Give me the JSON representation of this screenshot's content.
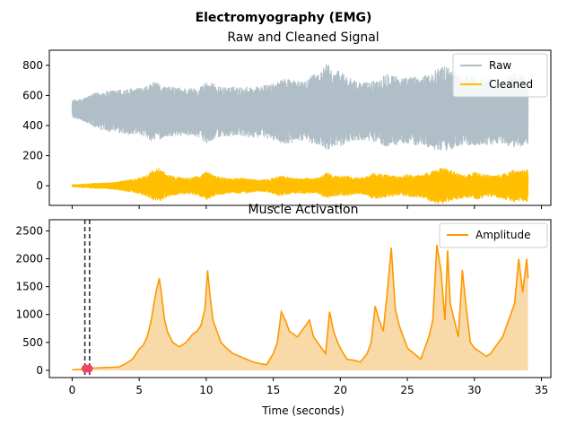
{
  "figure": {
    "suptitle": "Electromyography (EMG)"
  },
  "chart_data": [
    {
      "type": "line",
      "title": "Raw and Cleaned Signal",
      "xlabel": "",
      "ylabel": "",
      "xlim": [
        -1.7,
        35.7
      ],
      "ylim": [
        -130,
        900
      ],
      "xticks": [
        0,
        5,
        10,
        15,
        20,
        25,
        30,
        35
      ],
      "yticks": [
        0,
        200,
        400,
        600,
        800
      ],
      "ytick_labels": [
        "0",
        "200",
        "400",
        "600",
        "800"
      ],
      "show_xtick_labels": false,
      "legend": {
        "placement": "top-right",
        "entries": [
          "Raw",
          "Cleaned"
        ]
      },
      "series": [
        {
          "name": "Raw",
          "color": "#b0bfc7",
          "style": "noisy-band",
          "x": [
            0,
            0.5,
            1,
            1.5,
            2,
            2.5,
            3,
            3.5,
            4,
            4.5,
            5,
            5.5,
            6,
            6.5,
            7,
            7.5,
            8,
            8.5,
            9,
            9.5,
            10,
            10.5,
            11,
            11.5,
            12,
            12.5,
            13,
            13.5,
            14,
            14.5,
            15,
            15.5,
            16,
            16.5,
            17,
            17.5,
            18,
            18.5,
            19,
            19.5,
            20,
            20.5,
            21,
            21.5,
            22,
            22.5,
            23,
            23.5,
            24,
            24.5,
            25,
            25.5,
            26,
            26.5,
            27,
            27.5,
            28,
            28.5,
            29,
            29.5,
            30,
            30.5,
            31,
            31.5,
            32,
            32.5,
            33,
            33.5,
            34
          ],
          "upper": [
            570,
            575,
            590,
            610,
            625,
            630,
            635,
            640,
            645,
            650,
            650,
            660,
            690,
            680,
            660,
            660,
            655,
            650,
            650,
            655,
            700,
            680,
            660,
            655,
            660,
            655,
            660,
            660,
            665,
            670,
            680,
            700,
            720,
            710,
            690,
            700,
            760,
            750,
            820,
            760,
            770,
            730,
            700,
            690,
            690,
            700,
            720,
            760,
            740,
            720,
            720,
            730,
            720,
            740,
            760,
            800,
            790,
            770,
            730,
            730,
            740,
            720,
            720,
            710,
            700,
            740,
            760,
            740,
            720
          ],
          "lower": [
            450,
            440,
            420,
            395,
            370,
            360,
            355,
            345,
            340,
            335,
            330,
            320,
            290,
            305,
            320,
            330,
            330,
            335,
            330,
            320,
            280,
            305,
            320,
            330,
            320,
            330,
            320,
            320,
            320,
            310,
            300,
            285,
            270,
            280,
            300,
            290,
            280,
            270,
            230,
            270,
            260,
            280,
            300,
            300,
            295,
            290,
            280,
            250,
            265,
            280,
            275,
            265,
            270,
            255,
            240,
            215,
            230,
            250,
            270,
            270,
            260,
            265,
            270,
            275,
            280,
            260,
            250,
            255,
            280
          ]
        },
        {
          "name": "Cleaned",
          "color": "#ffbf00",
          "style": "noisy-band",
          "x": [
            0,
            0.5,
            1,
            1.5,
            2,
            2.5,
            3,
            3.5,
            4,
            4.5,
            5,
            5.5,
            6,
            6.5,
            7,
            7.5,
            8,
            8.5,
            9,
            9.5,
            10,
            10.5,
            11,
            11.5,
            12,
            12.5,
            13,
            13.5,
            14,
            14.5,
            15,
            15.5,
            16,
            16.5,
            17,
            17.5,
            18,
            18.5,
            19,
            19.5,
            20,
            20.5,
            21,
            21.5,
            22,
            22.5,
            23,
            23.5,
            24,
            24.5,
            25,
            25.5,
            26,
            26.5,
            27,
            27.5,
            28,
            28.5,
            29,
            29.5,
            30,
            30.5,
            31,
            31.5,
            32,
            32.5,
            33,
            33.5,
            34
          ],
          "upper": [
            10,
            12,
            15,
            18,
            20,
            22,
            25,
            30,
            40,
            45,
            55,
            70,
            110,
            120,
            80,
            65,
            60,
            55,
            60,
            70,
            95,
            80,
            60,
            55,
            50,
            55,
            50,
            45,
            40,
            45,
            55,
            70,
            60,
            55,
            50,
            55,
            50,
            60,
            90,
            70,
            65,
            70,
            60,
            55,
            65,
            90,
            80,
            75,
            70,
            60,
            80,
            70,
            75,
            90,
            105,
            125,
            110,
            100,
            80,
            75,
            95,
            80,
            75,
            70,
            80,
            95,
            110,
            100,
            120
          ],
          "lower": [
            -10,
            -12,
            -15,
            -18,
            -20,
            -22,
            -25,
            -30,
            -40,
            -45,
            -55,
            -70,
            -95,
            -105,
            -80,
            -65,
            -60,
            -55,
            -60,
            -70,
            -95,
            -80,
            -60,
            -55,
            -50,
            -55,
            -50,
            -45,
            -40,
            -45,
            -55,
            -70,
            -60,
            -55,
            -50,
            -55,
            -50,
            -60,
            -90,
            -70,
            -65,
            -70,
            -60,
            -55,
            -65,
            -95,
            -85,
            -75,
            -70,
            -60,
            -80,
            -75,
            -80,
            -95,
            -115,
            -125,
            -110,
            -100,
            -85,
            -80,
            -95,
            -85,
            -75,
            -75,
            -85,
            -100,
            -110,
            -100,
            -110
          ]
        }
      ]
    },
    {
      "type": "area",
      "title": "Muscle Activation",
      "xlabel": "Time (seconds)",
      "ylabel": "",
      "xlim": [
        -1.7,
        35.7
      ],
      "ylim": [
        -130,
        2700
      ],
      "xticks": [
        0,
        5,
        10,
        15,
        20,
        25,
        30,
        35
      ],
      "xtick_labels": [
        "0",
        "5",
        "10",
        "15",
        "20",
        "25",
        "30",
        "35"
      ],
      "yticks": [
        0,
        500,
        1000,
        1500,
        2000,
        2500
      ],
      "ytick_labels": [
        "0",
        "500",
        "1000",
        "1500",
        "2000",
        "2500"
      ],
      "legend": {
        "placement": "top-right",
        "entries": [
          "Amplitude"
        ]
      },
      "series": [
        {
          "name": "Amplitude",
          "color": "#ff9800",
          "fill_color": "#f8d9a8",
          "x": [
            0,
            0.5,
            1,
            1.3,
            1.6,
            2,
            2.5,
            3,
            3.5,
            4,
            4.5,
            5,
            5.3,
            5.6,
            5.9,
            6.1,
            6.3,
            6.5,
            6.7,
            6.9,
            7.1,
            7.5,
            8,
            8.5,
            9,
            9.3,
            9.6,
            9.9,
            10.1,
            10.3,
            10.5,
            10.8,
            11.1,
            11.5,
            12,
            12.5,
            13,
            13.5,
            14,
            14.5,
            15,
            15.3,
            15.6,
            15.9,
            16.2,
            16.5,
            16.8,
            17.1,
            17.4,
            17.7,
            18,
            18.3,
            18.6,
            18.9,
            19.2,
            19.5,
            19.8,
            20.1,
            20.5,
            21,
            21.5,
            22,
            22.3,
            22.6,
            22.9,
            23.2,
            23.5,
            23.8,
            24.1,
            24.4,
            24.7,
            25,
            25.5,
            26,
            26.3,
            26.6,
            26.9,
            27.2,
            27.5,
            27.8,
            28,
            28.2,
            28.5,
            28.8,
            29.1,
            29.4,
            29.7,
            30,
            30.3,
            30.6,
            30.9,
            31.2,
            31.5,
            31.8,
            32.1,
            32.4,
            32.7,
            33,
            33.3,
            33.6,
            33.9,
            34
          ],
          "y": [
            10,
            15,
            20,
            25,
            40,
            45,
            50,
            55,
            60,
            120,
            200,
            380,
            450,
            600,
            900,
            1200,
            1450,
            1650,
            1300,
            900,
            700,
            500,
            420,
            500,
            650,
            700,
            800,
            1100,
            1790,
            1300,
            900,
            700,
            500,
            400,
            300,
            250,
            200,
            150,
            120,
            100,
            300,
            500,
            1050,
            900,
            700,
            650,
            600,
            700,
            800,
            900,
            600,
            500,
            400,
            300,
            1050,
            700,
            500,
            350,
            200,
            180,
            150,
            300,
            500,
            1150,
            900,
            700,
            1400,
            2200,
            1100,
            800,
            600,
            400,
            300,
            200,
            400,
            600,
            900,
            2250,
            1800,
            900,
            2150,
            1200,
            900,
            600,
            1800,
            1100,
            500,
            400,
            350,
            300,
            250,
            300,
            400,
            500,
            600,
            800,
            1000,
            1200,
            2000,
            1400,
            2000,
            1650
          ]
        }
      ],
      "markers": [
        {
          "type": "vline",
          "x": 0.95,
          "style": "dashed",
          "color": "#333333"
        },
        {
          "type": "vline",
          "x": 1.3,
          "style": "dashed",
          "color": "#333333"
        },
        {
          "type": "point",
          "x": 1.0,
          "y": 30,
          "color": "#ef4565"
        },
        {
          "type": "point",
          "x": 1.25,
          "y": 30,
          "color": "#ef4565"
        }
      ]
    }
  ]
}
